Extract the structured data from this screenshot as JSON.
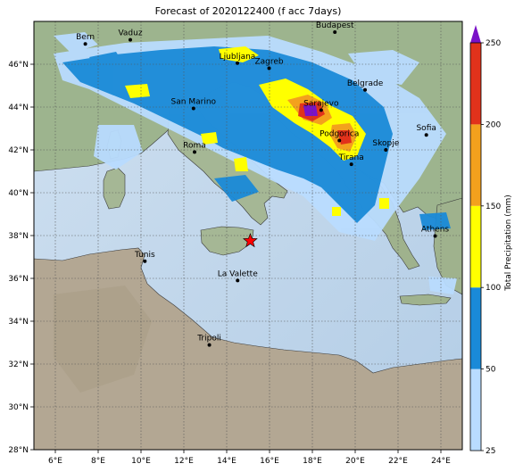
{
  "title": "Forecast of 2020122400 (f acc 7days)",
  "map": {
    "lon_range": [
      5,
      25
    ],
    "lat_range": [
      28,
      48
    ],
    "lon_ticks": [
      "6°E",
      "8°E",
      "10°E",
      "12°E",
      "14°E",
      "16°E",
      "18°E",
      "20°E",
      "22°E",
      "24°E"
    ],
    "lat_ticks": [
      "28°N",
      "30°N",
      "32°N",
      "34°N",
      "36°N",
      "38°N",
      "40°N",
      "42°N",
      "44°N",
      "46°N"
    ],
    "cities": [
      {
        "name": "Bern",
        "lon": 7.4,
        "lat": 46.95
      },
      {
        "name": "Vaduz",
        "lon": 9.5,
        "lat": 47.14
      },
      {
        "name": "Budapest",
        "lon": 19.05,
        "lat": 47.5
      },
      {
        "name": "Ljubljana",
        "lon": 14.5,
        "lat": 46.05
      },
      {
        "name": "Zagreb",
        "lon": 15.98,
        "lat": 45.81
      },
      {
        "name": "Belgrade",
        "lon": 20.46,
        "lat": 44.8
      },
      {
        "name": "San Marino",
        "lon": 12.45,
        "lat": 43.94
      },
      {
        "name": "Sarajevo",
        "lon": 18.41,
        "lat": 43.86
      },
      {
        "name": "Sofia",
        "lon": 23.32,
        "lat": 42.7
      },
      {
        "name": "Podgorica",
        "lon": 19.26,
        "lat": 42.44
      },
      {
        "name": "Skopje",
        "lon": 21.43,
        "lat": 42.0
      },
      {
        "name": "Roma",
        "lon": 12.5,
        "lat": 41.9
      },
      {
        "name": "Tirana",
        "lon": 19.82,
        "lat": 41.33
      },
      {
        "name": "Athens",
        "lon": 23.73,
        "lat": 37.98
      },
      {
        "name": "Tunis",
        "lon": 10.18,
        "lat": 36.8
      },
      {
        "name": "La Valette",
        "lon": 14.51,
        "lat": 35.9
      },
      {
        "name": "Tripoli",
        "lon": 13.19,
        "lat": 32.89
      }
    ],
    "marker": {
      "shape": "star",
      "lon": 15.1,
      "lat": 37.75,
      "color": "#ff0000"
    }
  },
  "colorbar": {
    "label": "Total Precipitation (mm)",
    "ticks": [
      "25",
      "50",
      "100",
      "150",
      "200",
      "250"
    ],
    "colors": [
      "#b9dcff",
      "#1a8ad8",
      "#ffff00",
      "#f3a11d",
      "#e1321b"
    ],
    "extend_color": "#7a12c8"
  }
}
